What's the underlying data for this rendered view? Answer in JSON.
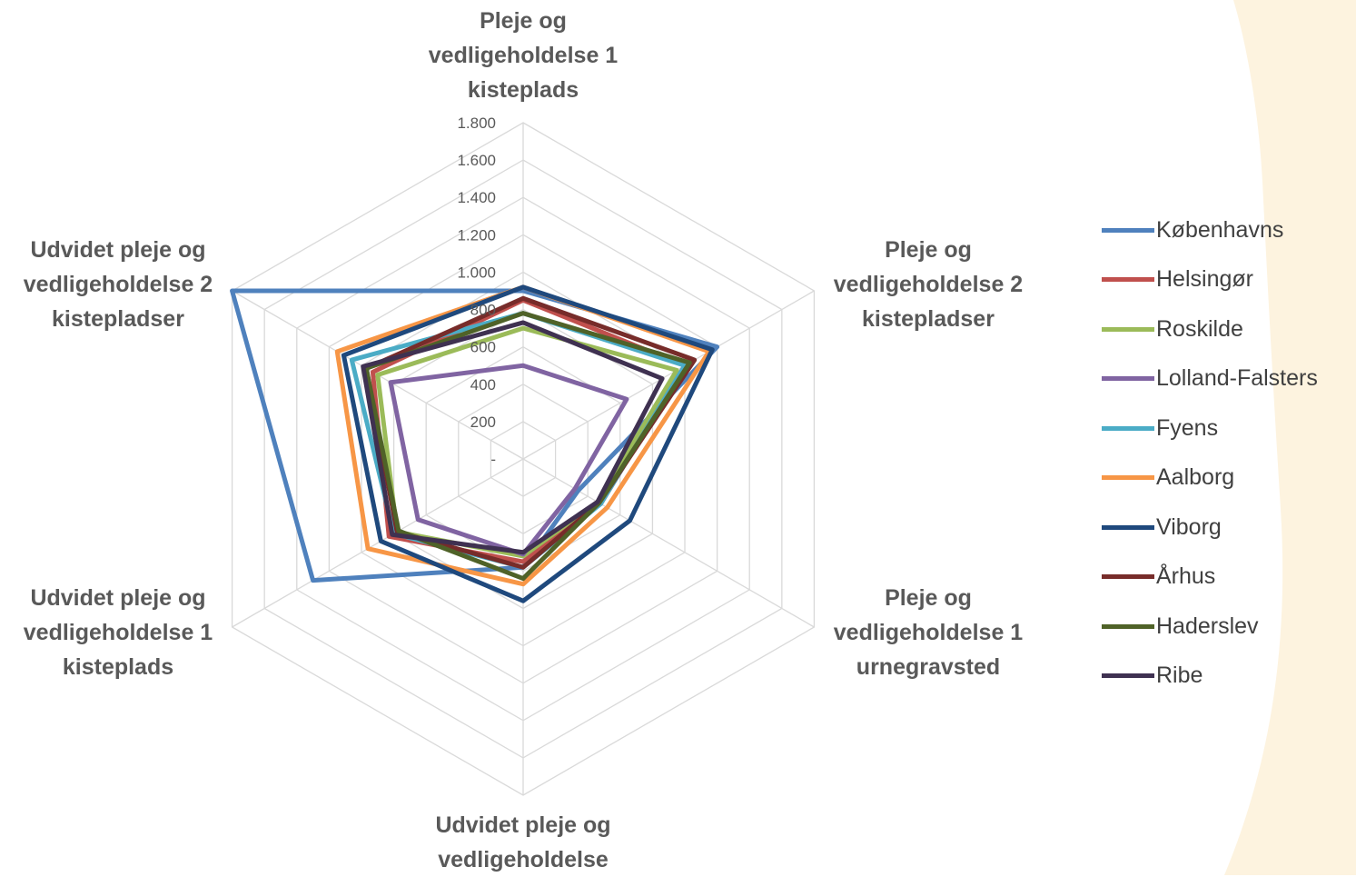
{
  "chart_data": {
    "type": "radar",
    "axes": [
      "Pleje og\nvedligeholdelse 1\nkisteplads",
      "Pleje og\nvedligeholdelse 2\nkistepladser",
      "Pleje og\nvedligeholdelse 1\nurnegravsted",
      "Udvidet pleje og\nvedligeholdelse",
      "Udvidet pleje og\nvedligeholdelse 1\nkisteplads",
      "Udvidet pleje og\nvedligeholdelse 2\nkistepladser"
    ],
    "tick_labels": [
      "-",
      "200",
      "400",
      "600",
      "800",
      "1.000",
      "1.200",
      "1.400",
      "1.600",
      "1.800"
    ],
    "rmax": 1800,
    "grid": true,
    "legend_position": "right",
    "series": [
      {
        "name": "Københavns",
        "color": "#4F81BD",
        "values": [
          900,
          1200,
          340,
          580,
          1300,
          1800
        ]
      },
      {
        "name": "Helsingør",
        "color": "#C0504D",
        "values": [
          850,
          1000,
          480,
          550,
          830,
          930
        ]
      },
      {
        "name": "Roskilde",
        "color": "#9BBB59",
        "values": [
          700,
          950,
          460,
          520,
          780,
          900
        ]
      },
      {
        "name": "Lolland-Falsters",
        "color": "#8064A2",
        "values": [
          500,
          640,
          320,
          510,
          650,
          820
        ]
      },
      {
        "name": "Fyens",
        "color": "#4BACC6",
        "values": [
          780,
          1000,
          480,
          580,
          800,
          1060
        ]
      },
      {
        "name": "Aalborg",
        "color": "#F79646",
        "values": [
          920,
          1150,
          520,
          670,
          960,
          1150
        ]
      },
      {
        "name": "Viborg",
        "color": "#1F497D",
        "values": [
          920,
          1170,
          660,
          760,
          880,
          1110
        ]
      },
      {
        "name": "Århus",
        "color": "#772C2A",
        "values": [
          860,
          1060,
          470,
          580,
          780,
          970
        ]
      },
      {
        "name": "Haderslev",
        "color": "#4F6228",
        "values": [
          780,
          1030,
          470,
          640,
          770,
          970
        ]
      },
      {
        "name": "Ribe",
        "color": "#3F3151",
        "values": [
          730,
          860,
          460,
          500,
          810,
          990
        ]
      }
    ]
  }
}
